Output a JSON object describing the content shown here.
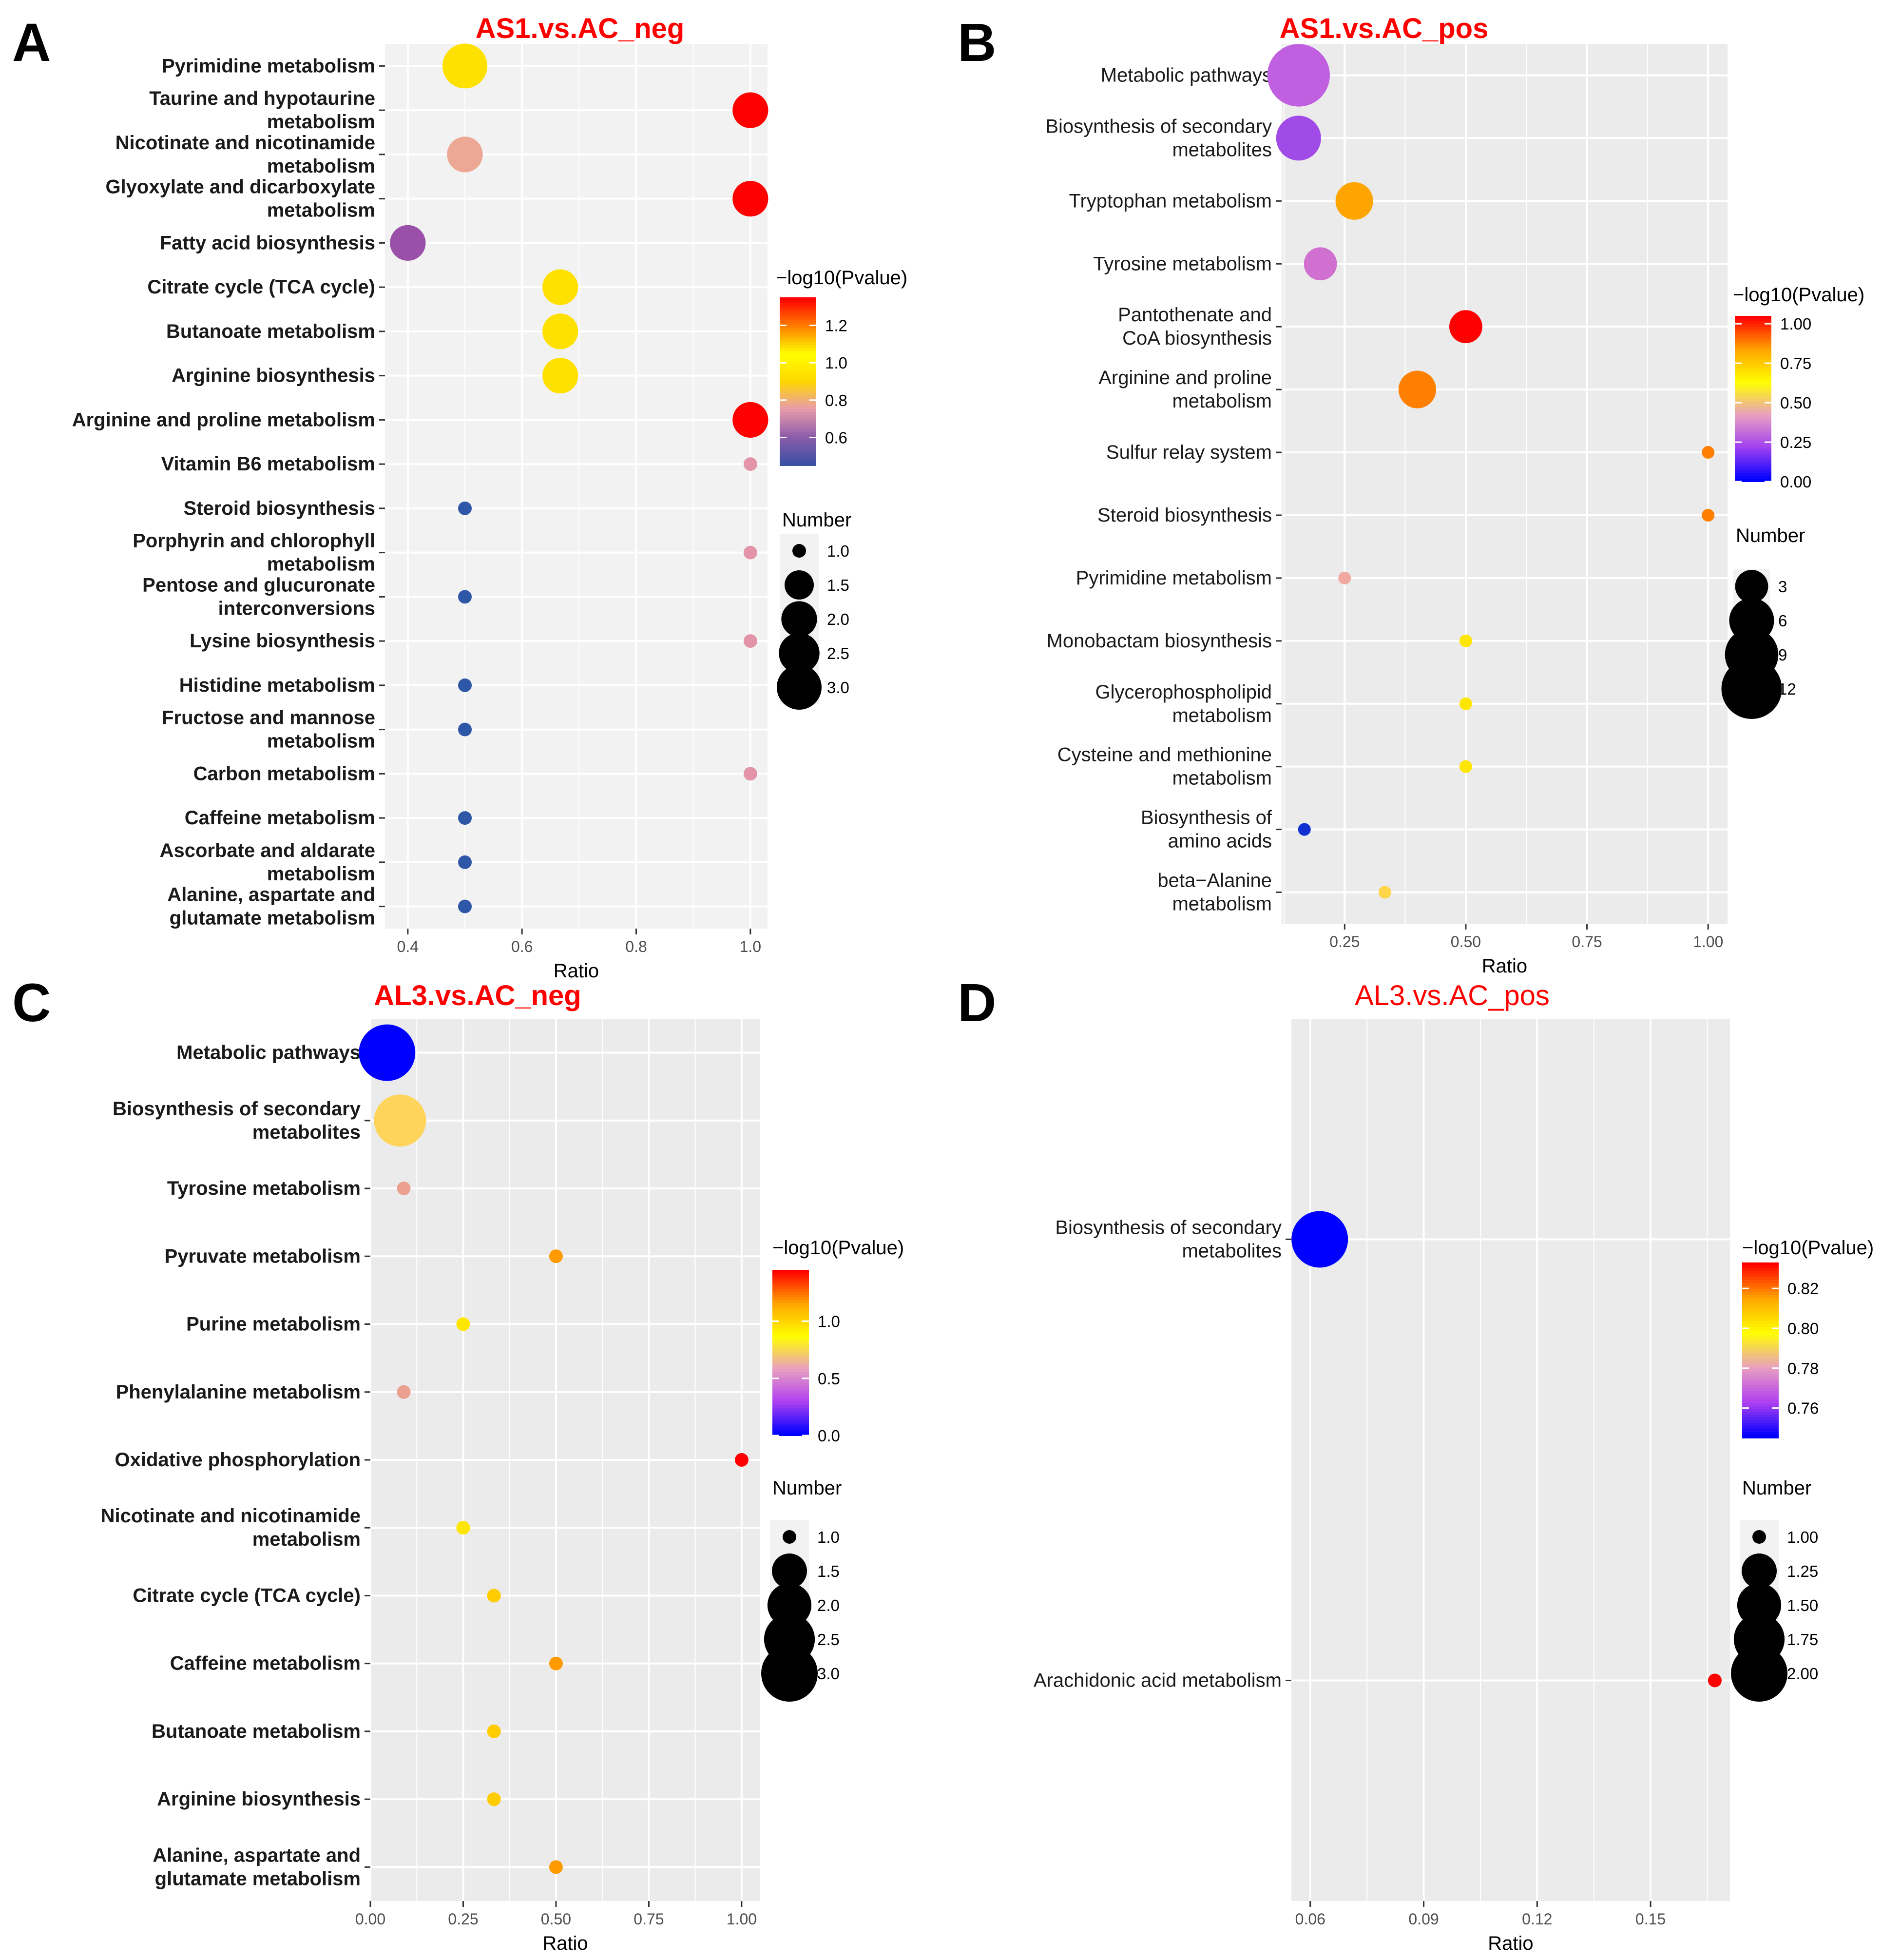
{
  "colors": {
    "title": "#ff0000",
    "panel_bg": "#ebebeb",
    "panel_bg_light": "#f2f2f2",
    "grid": "#ffffff"
  },
  "chart_data": [
    {
      "panel_label": "A",
      "type": "scatter",
      "title": "AS1.vs.AC_neg",
      "xlabel": "Ratio",
      "xlim": [
        0.36,
        1.03
      ],
      "xticks": [
        "0.4",
        "0.6",
        "0.8",
        "1.0"
      ],
      "xtick_values": [
        0.4,
        0.6,
        0.8,
        1.0
      ],
      "color_scale": {
        "title": "−log10(Pvalue)",
        "stops": [
          "#3b4fa3",
          "#8e5da9",
          "#e89cab",
          "#ffd700",
          "#ffff00",
          "#ff7f00",
          "#ff0000"
        ],
        "range": [
          0.45,
          1.35
        ],
        "ticks": [
          "0.6",
          "0.8",
          "1.0",
          "1.2"
        ],
        "tick_values": [
          0.6,
          0.8,
          1.0,
          1.2
        ]
      },
      "size_scale": {
        "title": "Number",
        "labels": [
          "1.0",
          "1.5",
          "2.0",
          "2.5",
          "3.0"
        ],
        "values": [
          1.0,
          1.5,
          2.0,
          2.5,
          3.0
        ],
        "range": [
          1,
          3
        ]
      },
      "points": [
        {
          "label": [
            "Pyrimidine metabolism"
          ],
          "ratio": 0.5,
          "number": 3,
          "pvalue": 1.0,
          "color": "#ffe100"
        },
        {
          "label": [
            "Taurine and hypotaurine",
            "metabolism"
          ],
          "ratio": 1.0,
          "number": 2,
          "pvalue": 1.35,
          "color": "#ff0000"
        },
        {
          "label": [
            "Nicotinate and nicotinamide",
            "metabolism"
          ],
          "ratio": 0.5,
          "number": 2,
          "pvalue": 0.78,
          "color": "#eda895"
        },
        {
          "label": [
            "Glyoxylate and dicarboxylate",
            "metabolism"
          ],
          "ratio": 1.0,
          "number": 2,
          "pvalue": 1.35,
          "color": "#ff0000"
        },
        {
          "label": [
            "Fatty acid biosynthesis"
          ],
          "ratio": 0.4,
          "number": 2,
          "pvalue": 0.65,
          "color": "#9a50a8"
        },
        {
          "label": [
            "Citrate cycle (TCA cycle)"
          ],
          "ratio": 0.667,
          "number": 2,
          "pvalue": 1.0,
          "color": "#ffe100"
        },
        {
          "label": [
            "Butanoate metabolism"
          ],
          "ratio": 0.667,
          "number": 2,
          "pvalue": 1.0,
          "color": "#ffe100"
        },
        {
          "label": [
            "Arginine biosynthesis"
          ],
          "ratio": 0.667,
          "number": 2,
          "pvalue": 1.0,
          "color": "#ffe100"
        },
        {
          "label": [
            "Arginine and proline metabolism"
          ],
          "ratio": 1.0,
          "number": 2,
          "pvalue": 1.35,
          "color": "#ff0000"
        },
        {
          "label": [
            "Vitamin B6 metabolism"
          ],
          "ratio": 1.0,
          "number": 1,
          "pvalue": 0.75,
          "color": "#e394a8"
        },
        {
          "label": [
            "Steroid biosynthesis"
          ],
          "ratio": 0.5,
          "number": 1,
          "pvalue": 0.45,
          "color": "#2f57a8"
        },
        {
          "label": [
            "Porphyrin and chlorophyll",
            "metabolism"
          ],
          "ratio": 1.0,
          "number": 1,
          "pvalue": 0.75,
          "color": "#e394a8"
        },
        {
          "label": [
            "Pentose and glucuronate",
            "interconversions"
          ],
          "ratio": 0.5,
          "number": 1,
          "pvalue": 0.45,
          "color": "#2f57a8"
        },
        {
          "label": [
            "Lysine biosynthesis"
          ],
          "ratio": 1.0,
          "number": 1,
          "pvalue": 0.75,
          "color": "#e394a8"
        },
        {
          "label": [
            "Histidine metabolism"
          ],
          "ratio": 0.5,
          "number": 1,
          "pvalue": 0.45,
          "color": "#2f57a8"
        },
        {
          "label": [
            "Fructose and mannose",
            "metabolism"
          ],
          "ratio": 0.5,
          "number": 1,
          "pvalue": 0.45,
          "color": "#2f57a8"
        },
        {
          "label": [
            "Carbon metabolism"
          ],
          "ratio": 1.0,
          "number": 1,
          "pvalue": 0.75,
          "color": "#e394a8"
        },
        {
          "label": [
            "Caffeine metabolism"
          ],
          "ratio": 0.5,
          "number": 1,
          "pvalue": 0.45,
          "color": "#2f57a8"
        },
        {
          "label": [
            "Ascorbate and aldarate",
            "metabolism"
          ],
          "ratio": 0.5,
          "number": 1,
          "pvalue": 0.45,
          "color": "#2f57a8"
        },
        {
          "label": [
            "Alanine, aspartate and",
            "glutamate metabolism"
          ],
          "ratio": 0.5,
          "number": 1,
          "pvalue": 0.45,
          "color": "#2f57a8"
        }
      ]
    },
    {
      "panel_label": "B",
      "type": "scatter",
      "title": "AS1.vs.AC_pos",
      "xlabel": "Ratio",
      "xlim": [
        0.12,
        1.04
      ],
      "xticks": [
        "0.25",
        "0.50",
        "0.75",
        "1.00"
      ],
      "xtick_values": [
        0.25,
        0.5,
        0.75,
        1.0
      ],
      "color_scale": {
        "title": "−log10(Pvalue)",
        "stops": [
          "#0000ff",
          "#a040f0",
          "#e9a0c0",
          "#ffff00",
          "#ffa500",
          "#ff0000"
        ],
        "range": [
          0.0,
          1.05
        ],
        "ticks": [
          "0.00",
          "0.25",
          "0.50",
          "0.75",
          "1.00"
        ],
        "tick_values": [
          0.0,
          0.25,
          0.5,
          0.75,
          1.0
        ]
      },
      "size_scale": {
        "title": "Number",
        "labels": [
          "3",
          "6",
          "9",
          "12"
        ],
        "values": [
          3,
          6,
          9,
          12
        ],
        "range": [
          1,
          12
        ]
      },
      "points": [
        {
          "label": [
            "Metabolic pathways"
          ],
          "ratio": 0.155,
          "number": 13,
          "pvalue": 0.15,
          "color": "#c060e0"
        },
        {
          "label": [
            "Biosynthesis of secondary",
            "metabolites"
          ],
          "ratio": 0.155,
          "number": 6,
          "pvalue": 0.12,
          "color": "#a04ae8"
        },
        {
          "label": [
            "Tryptophan metabolism"
          ],
          "ratio": 0.27,
          "number": 4,
          "pvalue": 0.72,
          "color": "#ffa500"
        },
        {
          "label": [
            "Tyrosine metabolism"
          ],
          "ratio": 0.2,
          "number": 3,
          "pvalue": 0.2,
          "color": "#d070d0"
        },
        {
          "label": [
            "Pantothenate and",
            "CoA biosynthesis"
          ],
          "ratio": 0.5,
          "number": 3,
          "pvalue": 1.02,
          "color": "#ff0000"
        },
        {
          "label": [
            "Arginine and proline",
            "metabolism"
          ],
          "ratio": 0.4,
          "number": 4,
          "pvalue": 0.85,
          "color": "#ff7f00"
        },
        {
          "label": [
            "Sulfur relay system"
          ],
          "ratio": 1.0,
          "number": 1,
          "pvalue": 0.85,
          "color": "#ff7f00"
        },
        {
          "label": [
            "Steroid biosynthesis"
          ],
          "ratio": 1.0,
          "number": 1,
          "pvalue": 0.85,
          "color": "#ff7f00"
        },
        {
          "label": [
            "Pyrimidine metabolism"
          ],
          "ratio": 0.25,
          "number": 1,
          "pvalue": 0.3,
          "color": "#f0a8a0"
        },
        {
          "label": [
            "Monobactam biosynthesis"
          ],
          "ratio": 0.5,
          "number": 1,
          "pvalue": 0.55,
          "color": "#ffe600"
        },
        {
          "label": [
            "Glycerophospholipid",
            "metabolism"
          ],
          "ratio": 0.5,
          "number": 1,
          "pvalue": 0.55,
          "color": "#ffe600"
        },
        {
          "label": [
            "Cysteine and methionine",
            "metabolism"
          ],
          "ratio": 0.5,
          "number": 1,
          "pvalue": 0.55,
          "color": "#ffe600"
        },
        {
          "label": [
            "Biosynthesis of",
            "amino acids"
          ],
          "ratio": 0.167,
          "number": 1,
          "pvalue": 0.02,
          "color": "#1030d0"
        },
        {
          "label": [
            "beta−Alanine",
            "metabolism"
          ],
          "ratio": 0.333,
          "number": 1,
          "pvalue": 0.5,
          "color": "#ffd54a"
        }
      ]
    },
    {
      "panel_label": "C",
      "type": "scatter",
      "title": "AL3.vs.AC_neg",
      "xlabel": "Ratio",
      "xlim": [
        0.0,
        1.05
      ],
      "xticks": [
        "0.00",
        "0.25",
        "0.50",
        "0.75",
        "1.00"
      ],
      "xtick_values": [
        0.0,
        0.25,
        0.5,
        0.75,
        1.0
      ],
      "color_scale": {
        "title": "−log10(Pvalue)",
        "stops": [
          "#0000ff",
          "#b040f0",
          "#e9a0c0",
          "#ffff00",
          "#ffa500",
          "#ff0000"
        ],
        "range": [
          0.0,
          1.45
        ],
        "ticks": [
          "0.0",
          "0.5",
          "1.0"
        ],
        "tick_values": [
          0.0,
          0.5,
          1.0
        ]
      },
      "size_scale": {
        "title": "Number",
        "labels": [
          "1.0",
          "1.5",
          "2.0",
          "2.5",
          "3.0"
        ],
        "values": [
          1.0,
          1.5,
          2.0,
          2.5,
          3.0
        ],
        "range": [
          1,
          3
        ]
      },
      "points": [
        {
          "label": [
            "Metabolic pathways"
          ],
          "ratio": 0.045,
          "number": 3,
          "pvalue": 0.0,
          "color": "#0000ff"
        },
        {
          "label": [
            "Biosynthesis of secondary",
            "metabolites"
          ],
          "ratio": 0.08,
          "number": 2.6,
          "pvalue": 0.75,
          "color": "#ffd45a"
        },
        {
          "label": [
            "Tyrosine metabolism"
          ],
          "ratio": 0.09,
          "number": 1,
          "pvalue": 0.4,
          "color": "#eba090"
        },
        {
          "label": [
            "Pyruvate metabolism"
          ],
          "ratio": 0.5,
          "number": 1,
          "pvalue": 1.2,
          "color": "#ff9a00"
        },
        {
          "label": [
            "Purine  metabolism"
          ],
          "ratio": 0.25,
          "number": 1,
          "pvalue": 0.85,
          "color": "#ffe600"
        },
        {
          "label": [
            "Phenylalanine   metabolism"
          ],
          "ratio": 0.09,
          "number": 1,
          "pvalue": 0.4,
          "color": "#eba090"
        },
        {
          "label": [
            "Oxidative phosphorylation"
          ],
          "ratio": 1.0,
          "number": 1,
          "pvalue": 1.45,
          "color": "#ff0000"
        },
        {
          "label": [
            "Nicotinate and nicotinamide",
            "metabolism"
          ],
          "ratio": 0.25,
          "number": 1,
          "pvalue": 0.85,
          "color": "#ffe600"
        },
        {
          "label": [
            "Citrate cycle (TCA cycle)"
          ],
          "ratio": 0.333,
          "number": 1,
          "pvalue": 0.95,
          "color": "#ffcc00"
        },
        {
          "label": [
            "Caffeine metabolism"
          ],
          "ratio": 0.5,
          "number": 1,
          "pvalue": 1.2,
          "color": "#ff9a00"
        },
        {
          "label": [
            "Butanoate metabolism"
          ],
          "ratio": 0.333,
          "number": 1,
          "pvalue": 0.95,
          "color": "#ffcc00"
        },
        {
          "label": [
            "Arginine biosynthesis"
          ],
          "ratio": 0.333,
          "number": 1,
          "pvalue": 0.95,
          "color": "#ffcc00"
        },
        {
          "label": [
            "Alanine, aspartate and",
            "glutamate metabolism"
          ],
          "ratio": 0.5,
          "number": 1,
          "pvalue": 1.2,
          "color": "#ff9a00"
        }
      ]
    },
    {
      "panel_label": "D",
      "type": "scatter",
      "title": "AL3.vs.AC_pos",
      "xlabel": "Ratio",
      "xlim": [
        0.055,
        0.171
      ],
      "xticks": [
        "0.06",
        "0.09",
        "0.12",
        "0.15"
      ],
      "xtick_values": [
        0.06,
        0.09,
        0.12,
        0.15
      ],
      "color_scale": {
        "title": "−log10(Pvalue)",
        "stops": [
          "#0000ff",
          "#b040f0",
          "#e9a0c0",
          "#ffff00",
          "#ffa500",
          "#ff0000"
        ],
        "range": [
          0.745,
          0.833
        ],
        "ticks": [
          "0.76",
          "0.78",
          "0.80",
          "0.82"
        ],
        "tick_values": [
          0.76,
          0.78,
          0.8,
          0.82
        ]
      },
      "size_scale": {
        "title": "Number",
        "labels": [
          "1.00",
          "1.25",
          "1.50",
          "1.75",
          "2.00"
        ],
        "values": [
          1.0,
          1.25,
          1.5,
          1.75,
          2.0
        ],
        "range": [
          1,
          2
        ]
      },
      "points": [
        {
          "label": [
            "Biosynthesis of secondary",
            "metabolites"
          ],
          "ratio": 0.0625,
          "number": 2,
          "pvalue": 0.745,
          "color": "#0000ff"
        },
        {
          "label": [
            "Arachidonic acid metabolism"
          ],
          "ratio": 0.167,
          "number": 1,
          "pvalue": 0.833,
          "color": "#ff0000"
        }
      ]
    }
  ]
}
